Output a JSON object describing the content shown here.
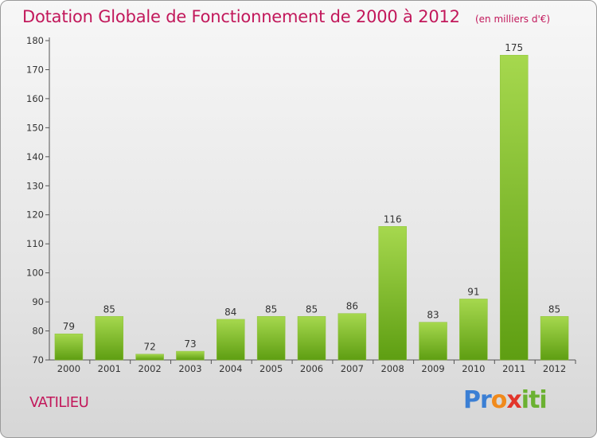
{
  "chart_data": {
    "type": "bar",
    "title": "Dotation Globale de Fonctionnement de 2000 à 2012",
    "subtitle": "(en milliers d'€)",
    "categories": [
      "2000",
      "2001",
      "2002",
      "2003",
      "2004",
      "2005",
      "2006",
      "2007",
      "2008",
      "2009",
      "2010",
      "2011",
      "2012"
    ],
    "values": [
      79,
      85,
      72,
      73,
      84,
      85,
      85,
      86,
      116,
      83,
      91,
      175,
      85
    ],
    "ylim": [
      70,
      180
    ],
    "yticks": [
      70,
      80,
      90,
      100,
      110,
      120,
      130,
      140,
      150,
      160,
      170,
      180
    ],
    "grid": false,
    "bar_color_top": "#a6d84e",
    "bar_color_bottom": "#5e9e12"
  },
  "footer": {
    "commune": "VATILIEU",
    "logo": "Proxiti",
    "logo_colors": {
      "p_r": "#3b7fd4",
      "o": "#f08a1c",
      "x": "#e2352b",
      "iti": "#6bb131"
    }
  },
  "title_color": "#c2185b"
}
